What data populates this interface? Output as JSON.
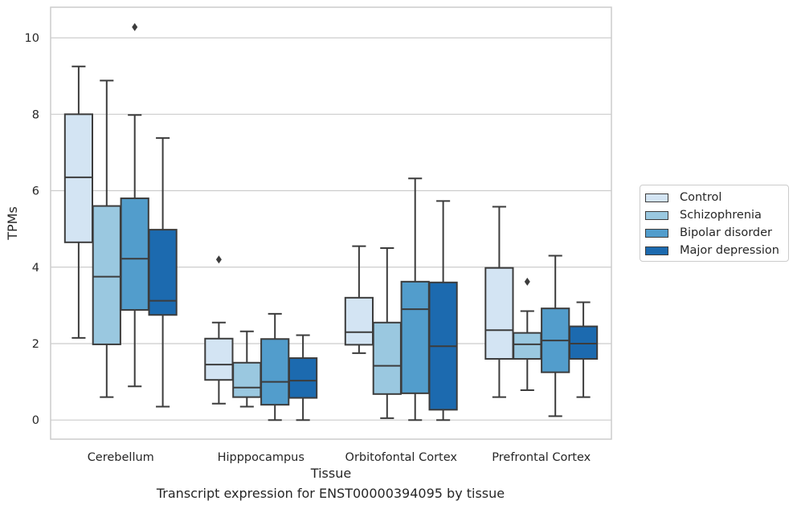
{
  "caption": "Transcript expression for ENST00000394095 by tissue",
  "chart_data": {
    "type": "boxplot",
    "xlabel": "Tissue",
    "ylabel": "TPMs",
    "ylim": [
      -0.5,
      10.8
    ],
    "yticks": [
      0,
      2,
      4,
      6,
      8,
      10
    ],
    "grid": "horizontal",
    "legend_position": "right",
    "categories": [
      "Cerebellum",
      "Hipppocampus",
      "Orbitofontal Cortex",
      "Prefrontal Cortex"
    ],
    "series": [
      {
        "name": "Control",
        "color": "#d3e4f3",
        "boxes": [
          {
            "whisker_low": 2.15,
            "q1": 4.65,
            "median": 6.35,
            "q3": 8.0,
            "whisker_high": 9.25,
            "outliers": []
          },
          {
            "whisker_low": 0.43,
            "q1": 1.05,
            "median": 1.45,
            "q3": 2.13,
            "whisker_high": 2.55,
            "outliers": [
              4.2
            ]
          },
          {
            "whisker_low": 1.75,
            "q1": 1.97,
            "median": 2.3,
            "q3": 3.2,
            "whisker_high": 4.55,
            "outliers": []
          },
          {
            "whisker_low": 0.6,
            "q1": 1.6,
            "median": 2.35,
            "q3": 3.98,
            "whisker_high": 5.58,
            "outliers": []
          }
        ]
      },
      {
        "name": "Schizophrenia",
        "color": "#9ac8e0",
        "boxes": [
          {
            "whisker_low": 0.6,
            "q1": 1.98,
            "median": 3.75,
            "q3": 5.6,
            "whisker_high": 8.88,
            "outliers": []
          },
          {
            "whisker_low": 0.35,
            "q1": 0.6,
            "median": 0.85,
            "q3": 1.5,
            "whisker_high": 2.32,
            "outliers": []
          },
          {
            "whisker_low": 0.05,
            "q1": 0.68,
            "median": 1.42,
            "q3": 2.55,
            "whisker_high": 4.5,
            "outliers": []
          },
          {
            "whisker_low": 0.78,
            "q1": 1.6,
            "median": 1.98,
            "q3": 2.28,
            "whisker_high": 2.85,
            "outliers": [
              3.62
            ]
          }
        ]
      },
      {
        "name": "Bipolar disorder",
        "color": "#529dcc",
        "boxes": [
          {
            "whisker_low": 0.88,
            "q1": 2.88,
            "median": 4.22,
            "q3": 5.8,
            "whisker_high": 7.98,
            "outliers": [
              10.28
            ]
          },
          {
            "whisker_low": 0.0,
            "q1": 0.4,
            "median": 1.0,
            "q3": 2.12,
            "whisker_high": 2.78,
            "outliers": []
          },
          {
            "whisker_low": 0.0,
            "q1": 0.7,
            "median": 2.9,
            "q3": 3.62,
            "whisker_high": 6.32,
            "outliers": []
          },
          {
            "whisker_low": 0.1,
            "q1": 1.25,
            "median": 2.08,
            "q3": 2.92,
            "whisker_high": 4.3,
            "outliers": []
          }
        ]
      },
      {
        "name": "Major depression",
        "color": "#1c6aaf",
        "boxes": [
          {
            "whisker_low": 0.35,
            "q1": 2.75,
            "median": 3.12,
            "q3": 4.98,
            "whisker_high": 7.38,
            "outliers": []
          },
          {
            "whisker_low": 0.0,
            "q1": 0.58,
            "median": 1.03,
            "q3": 1.62,
            "whisker_high": 2.22,
            "outliers": []
          },
          {
            "whisker_low": 0.0,
            "q1": 0.27,
            "median": 1.93,
            "q3": 3.6,
            "whisker_high": 5.73,
            "outliers": []
          },
          {
            "whisker_low": 0.6,
            "q1": 1.6,
            "median": 2.0,
            "q3": 2.45,
            "whisker_high": 3.08,
            "outliers": []
          }
        ]
      }
    ]
  }
}
